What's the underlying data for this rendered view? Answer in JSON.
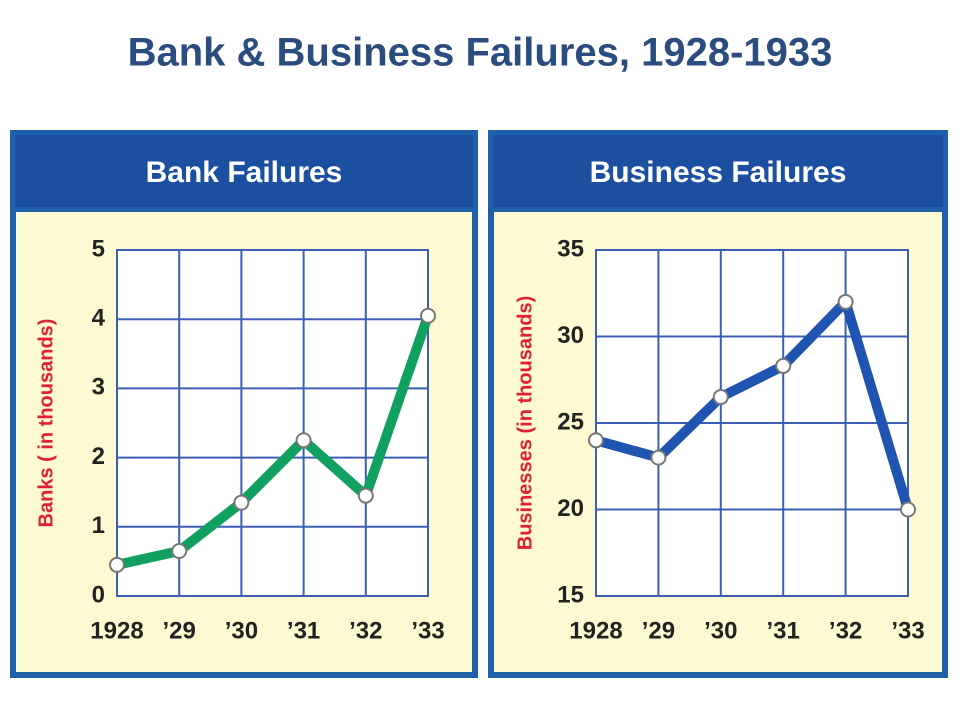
{
  "title": "Bank & Business Failures, 1928-1933",
  "chart_data": [
    {
      "type": "line",
      "title": "Bank Failures",
      "y_label": "Banks ( in thousands)",
      "categories": [
        "1928",
        "’29",
        "’30",
        "’31",
        "’32",
        "’33"
      ],
      "values": [
        0.45,
        0.65,
        1.35,
        2.25,
        1.45,
        4.05
      ],
      "color": "#10a060",
      "ylim": [
        0,
        5
      ],
      "yticks": [
        0,
        1,
        2,
        3,
        4,
        5
      ],
      "grid": true
    },
    {
      "type": "line",
      "title": "Business Failures",
      "y_label": "Businesses (in thousands)",
      "categories": [
        "1928",
        "’29",
        "’30",
        "’31",
        "’32",
        "’33"
      ],
      "values": [
        24,
        23,
        26.5,
        28.3,
        32,
        20
      ],
      "color": "#1f55b0",
      "ylim": [
        15,
        35
      ],
      "yticks": [
        15,
        20,
        25,
        30,
        35
      ],
      "grid": true
    }
  ]
}
